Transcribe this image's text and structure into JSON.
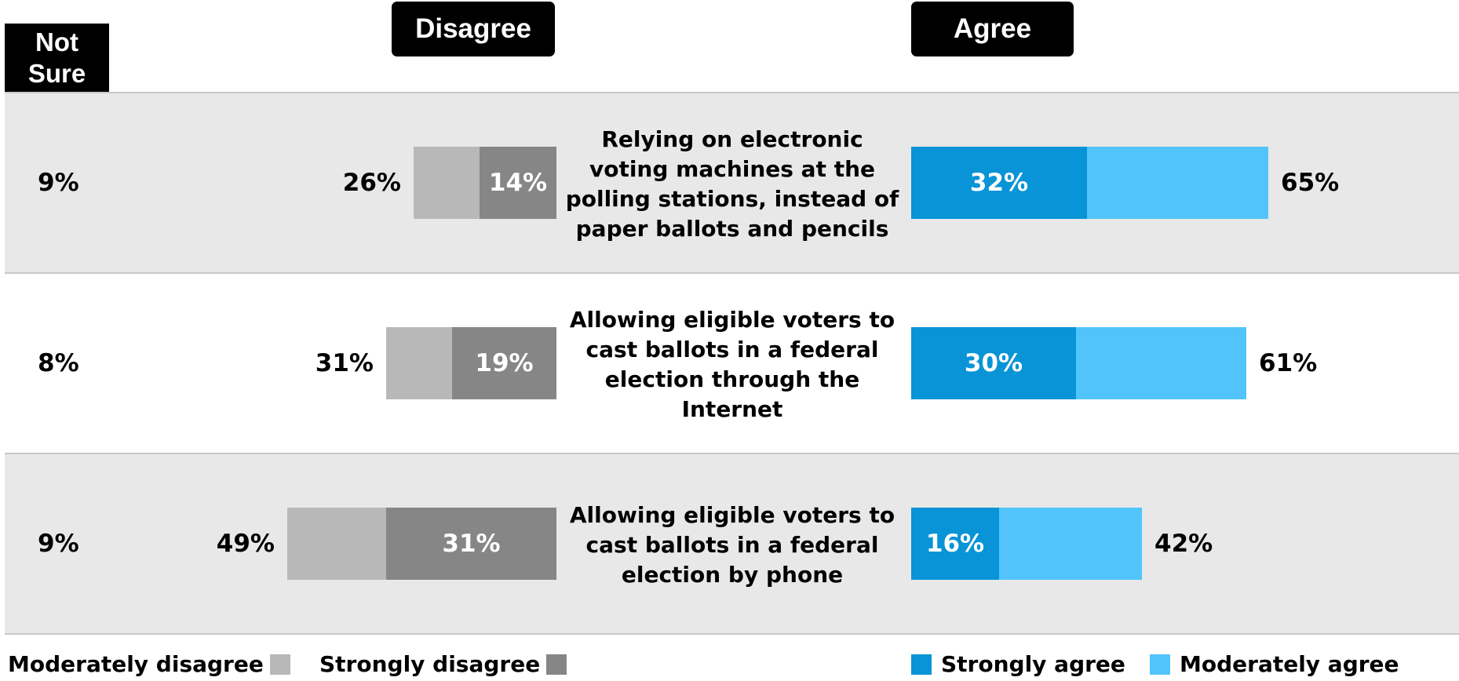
{
  "headers": {
    "not_sure": "Not Sure",
    "disagree": "Disagree",
    "agree": "Agree"
  },
  "chart_data": {
    "type": "bar",
    "orientation": "horizontal",
    "stacked": true,
    "diverging": true,
    "categories": [
      "Relying on electronic voting machines at the polling stations, instead of paper ballots and pencils",
      "Allowing eligible voters to cast ballots in a federal election through the Internet",
      "Allowing eligible voters to cast ballots in a federal election by phone"
    ],
    "series": [
      {
        "name": "Moderately disagree",
        "color": "#b8b8b8",
        "values": [
          12,
          12,
          18
        ]
      },
      {
        "name": "Strongly disagree",
        "color": "#868686",
        "values": [
          14,
          19,
          31
        ]
      },
      {
        "name": "Strongly agree",
        "color": "#0894d6",
        "values": [
          32,
          30,
          16
        ]
      },
      {
        "name": "Moderately agree",
        "color": "#52c4fb",
        "values": [
          33,
          31,
          26
        ]
      }
    ],
    "not_sure": [
      "9%",
      "8%",
      "9%"
    ],
    "disagree_total": [
      "26%",
      "31%",
      "49%"
    ],
    "agree_total": [
      "65%",
      "61%",
      "42%"
    ],
    "strongly_disagree_labels": [
      "14%",
      "19%",
      "31%"
    ],
    "strongly_agree_labels": [
      "32%",
      "30%",
      "16%"
    ],
    "row_backgrounds": [
      "#e8e8e8",
      "#ffffff",
      "#e8e8e8"
    ]
  },
  "legend": [
    {
      "label": "Moderately disagree",
      "color": "#b8b8b8"
    },
    {
      "label": "Strongly disagree",
      "color": "#868686"
    },
    {
      "label": "Strongly agree",
      "color": "#0894d6"
    },
    {
      "label": "Moderately agree",
      "color": "#52c4fb"
    }
  ]
}
